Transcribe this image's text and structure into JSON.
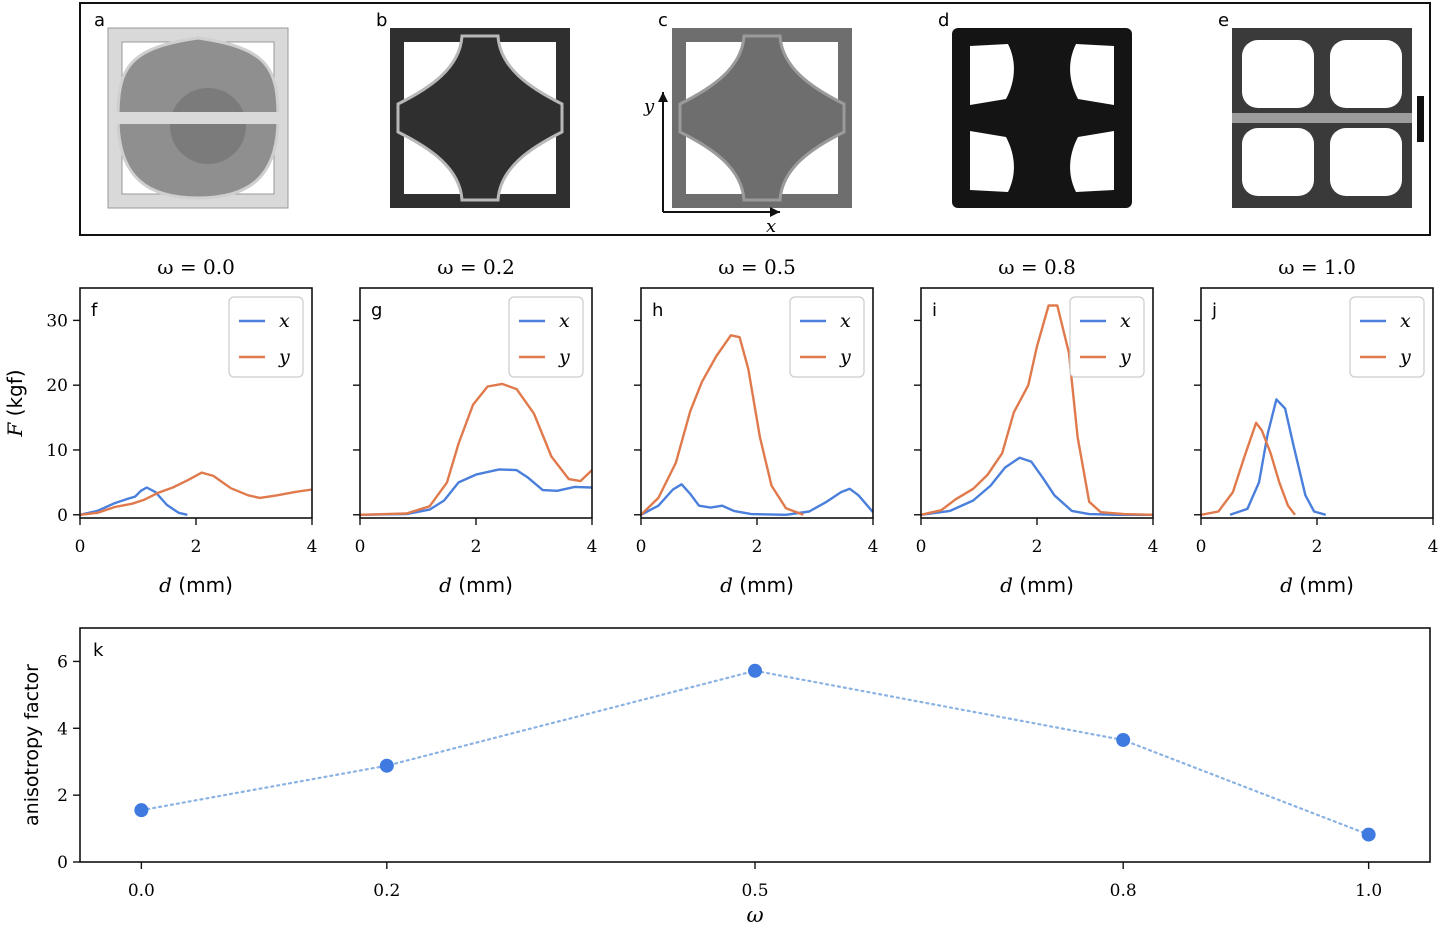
{
  "colors": {
    "x_series": "#4a7fdc",
    "y_series": "#e07a4c",
    "photo_light": "#d9d9d9",
    "photo_dark": "#2f2f2f",
    "panel_k_line": "#8ab2e3",
    "panel_k_marker": "#3f7ae0"
  },
  "photos": {
    "labels": [
      "a",
      "b",
      "c",
      "d",
      "e"
    ],
    "axis_x": "x",
    "axis_y": "y"
  },
  "chart_data": [
    {
      "panel": "f",
      "type": "line",
      "title": "ω = 0.0",
      "xlabel": "d (mm)",
      "ylabel": "F (kgf)",
      "xlim": [
        0,
        4
      ],
      "ylim": [
        -0.5,
        35
      ],
      "xticks": [
        "0",
        "2",
        "4"
      ],
      "yticks": [
        "0",
        "10",
        "20",
        "30"
      ],
      "legend": [
        "x",
        "y"
      ],
      "series": [
        {
          "name": "x",
          "points": [
            [
              0,
              0
            ],
            [
              0.3,
              0.6
            ],
            [
              0.6,
              1.8
            ],
            [
              0.8,
              2.4
            ],
            [
              0.95,
              2.8
            ],
            [
              1.05,
              3.7
            ],
            [
              1.15,
              4.2
            ],
            [
              1.3,
              3.5
            ],
            [
              1.5,
              1.5
            ],
            [
              1.7,
              0.3
            ],
            [
              1.85,
              0
            ]
          ]
        },
        {
          "name": "y",
          "points": [
            [
              0,
              0
            ],
            [
              0.3,
              0.3
            ],
            [
              0.6,
              1.2
            ],
            [
              0.9,
              1.7
            ],
            [
              1.1,
              2.3
            ],
            [
              1.35,
              3.4
            ],
            [
              1.6,
              4.2
            ],
            [
              1.85,
              5.3
            ],
            [
              2.1,
              6.5
            ],
            [
              2.3,
              6.0
            ],
            [
              2.6,
              4.1
            ],
            [
              2.9,
              3.0
            ],
            [
              3.1,
              2.6
            ],
            [
              3.4,
              3.0
            ],
            [
              3.7,
              3.5
            ],
            [
              4.0,
              3.9
            ]
          ]
        }
      ]
    },
    {
      "panel": "g",
      "type": "line",
      "title": "ω = 0.2",
      "xlabel": "d (mm)",
      "ylabel": "",
      "xlim": [
        0,
        4
      ],
      "ylim": [
        -0.5,
        35
      ],
      "xticks": [
        "0",
        "2",
        "4"
      ],
      "yticks": [
        "0",
        "10",
        "20",
        "30"
      ],
      "legend": [
        "x",
        "y"
      ],
      "series": [
        {
          "name": "x",
          "points": [
            [
              0,
              0
            ],
            [
              0.8,
              0.1
            ],
            [
              1.2,
              0.8
            ],
            [
              1.45,
              2.2
            ],
            [
              1.7,
              5.0
            ],
            [
              2.0,
              6.2
            ],
            [
              2.4,
              7.0
            ],
            [
              2.7,
              6.9
            ],
            [
              2.9,
              5.7
            ],
            [
              3.15,
              3.8
            ],
            [
              3.4,
              3.7
            ],
            [
              3.7,
              4.3
            ],
            [
              4.0,
              4.2
            ]
          ]
        },
        {
          "name": "y",
          "points": [
            [
              0,
              0
            ],
            [
              0.8,
              0.2
            ],
            [
              1.2,
              1.3
            ],
            [
              1.5,
              5.0
            ],
            [
              1.7,
              11.0
            ],
            [
              1.95,
              17.0
            ],
            [
              2.2,
              19.8
            ],
            [
              2.45,
              20.2
            ],
            [
              2.7,
              19.4
            ],
            [
              3.0,
              15.6
            ],
            [
              3.3,
              9.0
            ],
            [
              3.6,
              5.5
            ],
            [
              3.8,
              5.2
            ],
            [
              4.0,
              6.9
            ]
          ]
        }
      ]
    },
    {
      "panel": "h",
      "type": "line",
      "title": "ω = 0.5",
      "xlabel": "d (mm)",
      "ylabel": "",
      "xlim": [
        0,
        4
      ],
      "ylim": [
        -0.5,
        35
      ],
      "xticks": [
        "0",
        "2",
        "4"
      ],
      "yticks": [
        "0",
        "10",
        "20",
        "30"
      ],
      "legend": [
        "x",
        "y"
      ],
      "series": [
        {
          "name": "x",
          "points": [
            [
              0,
              0
            ],
            [
              0.3,
              1.4
            ],
            [
              0.55,
              3.9
            ],
            [
              0.7,
              4.7
            ],
            [
              0.85,
              3.2
            ],
            [
              1.0,
              1.4
            ],
            [
              1.2,
              1.1
            ],
            [
              1.4,
              1.4
            ],
            [
              1.6,
              0.6
            ],
            [
              1.9,
              0.1
            ],
            [
              2.5,
              0
            ],
            [
              2.9,
              0.5
            ],
            [
              3.2,
              2.0
            ],
            [
              3.45,
              3.5
            ],
            [
              3.6,
              4.0
            ],
            [
              3.75,
              3.0
            ],
            [
              4.0,
              0.4
            ]
          ]
        },
        {
          "name": "y",
          "points": [
            [
              0,
              0
            ],
            [
              0.3,
              2.6
            ],
            [
              0.6,
              8.0
            ],
            [
              0.85,
              16.0
            ],
            [
              1.05,
              20.5
            ],
            [
              1.3,
              24.5
            ],
            [
              1.55,
              27.7
            ],
            [
              1.7,
              27.4
            ],
            [
              1.85,
              22.5
            ],
            [
              2.05,
              12.0
            ],
            [
              2.25,
              4.5
            ],
            [
              2.5,
              1.0
            ],
            [
              2.8,
              0
            ]
          ]
        }
      ]
    },
    {
      "panel": "i",
      "type": "line",
      "title": "ω = 0.8",
      "xlabel": "d (mm)",
      "ylabel": "",
      "xlim": [
        0,
        4
      ],
      "ylim": [
        -0.5,
        35
      ],
      "xticks": [
        "0",
        "2",
        "4"
      ],
      "yticks": [
        "0",
        "10",
        "20",
        "30"
      ],
      "legend": [
        "x",
        "y"
      ],
      "series": [
        {
          "name": "x",
          "points": [
            [
              0,
              0
            ],
            [
              0.5,
              0.6
            ],
            [
              0.9,
              2.2
            ],
            [
              1.2,
              4.5
            ],
            [
              1.45,
              7.3
            ],
            [
              1.7,
              8.8
            ],
            [
              1.9,
              8.2
            ],
            [
              2.1,
              5.7
            ],
            [
              2.3,
              3.0
            ],
            [
              2.6,
              0.6
            ],
            [
              2.9,
              0.1
            ],
            [
              3.4,
              0
            ],
            [
              4.0,
              0
            ]
          ]
        },
        {
          "name": "y",
          "points": [
            [
              0,
              0
            ],
            [
              0.35,
              0.7
            ],
            [
              0.6,
              2.4
            ],
            [
              0.9,
              4.0
            ],
            [
              1.15,
              6.2
            ],
            [
              1.4,
              9.5
            ],
            [
              1.6,
              15.8
            ],
            [
              1.85,
              20.0
            ],
            [
              2.0,
              26.0
            ],
            [
              2.2,
              32.3
            ],
            [
              2.35,
              32.3
            ],
            [
              2.55,
              25.0
            ],
            [
              2.7,
              12.0
            ],
            [
              2.9,
              2.0
            ],
            [
              3.1,
              0.4
            ],
            [
              3.5,
              0.1
            ],
            [
              4.0,
              0
            ]
          ]
        }
      ]
    },
    {
      "panel": "j",
      "type": "line",
      "title": "ω = 1.0",
      "xlabel": "d (mm)",
      "ylabel": "",
      "xlim": [
        0,
        4
      ],
      "ylim": [
        -0.5,
        35
      ],
      "xticks": [
        "0",
        "2",
        "4"
      ],
      "yticks": [
        "0",
        "10",
        "20",
        "30"
      ],
      "legend": [
        "x",
        "y"
      ],
      "series": [
        {
          "name": "x",
          "points": [
            [
              0.5,
              0
            ],
            [
              0.8,
              0.9
            ],
            [
              1.0,
              5.0
            ],
            [
              1.15,
              12.5
            ],
            [
              1.3,
              17.8
            ],
            [
              1.45,
              16.4
            ],
            [
              1.6,
              10.5
            ],
            [
              1.8,
              3.0
            ],
            [
              1.95,
              0.5
            ],
            [
              2.15,
              0
            ]
          ]
        },
        {
          "name": "y",
          "points": [
            [
              0,
              0
            ],
            [
              0.3,
              0.5
            ],
            [
              0.55,
              3.5
            ],
            [
              0.75,
              9.0
            ],
            [
              0.95,
              14.2
            ],
            [
              1.05,
              13.0
            ],
            [
              1.2,
              9.5
            ],
            [
              1.35,
              5.0
            ],
            [
              1.5,
              1.4
            ],
            [
              1.62,
              0
            ]
          ]
        }
      ]
    },
    {
      "panel": "k",
      "type": "line",
      "title": "",
      "xlabel": "ω",
      "ylabel": "anisotropy factor",
      "xlim": [
        -0.05,
        1.05
      ],
      "ylim": [
        0,
        7
      ],
      "xticks": [
        "0.0",
        "0.2",
        "0.5",
        "0.8",
        "1.0"
      ],
      "yticks": [
        "0",
        "2",
        "4",
        "6"
      ],
      "x": [
        0.0,
        0.2,
        0.5,
        0.8,
        1.0
      ],
      "values": [
        1.55,
        2.88,
        5.72,
        3.65,
        0.82
      ]
    }
  ]
}
